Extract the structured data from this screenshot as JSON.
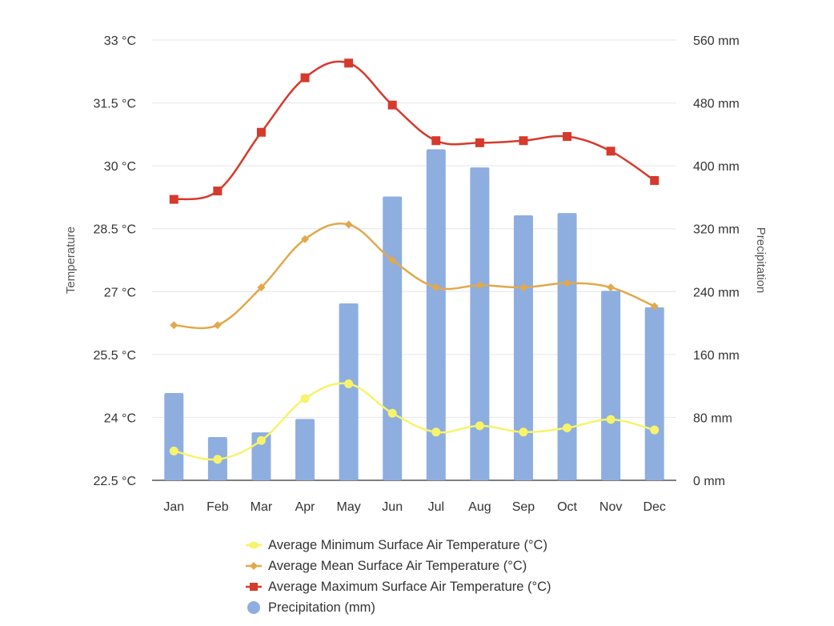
{
  "chart_data": {
    "type": "bar+line",
    "title": "",
    "categories": [
      "Jan",
      "Feb",
      "Mar",
      "Apr",
      "May",
      "Jun",
      "Jul",
      "Aug",
      "Sep",
      "Oct",
      "Nov",
      "Dec"
    ],
    "y_left": {
      "label": "Temperature",
      "range": [
        22.5,
        33
      ],
      "ticks": [
        22.5,
        24,
        25.5,
        27,
        28.5,
        30,
        31.5,
        33
      ],
      "tick_labels": [
        "22.5 °C",
        "24 °C",
        "25.5 °C",
        "27 °C",
        "28.5 °C",
        "30 °C",
        "31.5 °C",
        "33 °C"
      ]
    },
    "y_right": {
      "label": "Precipitation",
      "range": [
        0,
        560
      ],
      "ticks": [
        0,
        80,
        160,
        240,
        320,
        400,
        480,
        560
      ],
      "tick_labels": [
        "0 mm",
        "80 mm",
        "160 mm",
        "240 mm",
        "320 mm",
        "400 mm",
        "480 mm",
        "560 mm"
      ]
    },
    "grid": true,
    "legend_position": "bottom",
    "series": [
      {
        "name": "Average Minimum Surface Air Temperature (°C)",
        "type": "line",
        "axis": "left",
        "marker": "circle",
        "color": "#f7f36b",
        "values": [
          23.2,
          23.0,
          23.45,
          24.45,
          24.8,
          24.1,
          23.65,
          23.8,
          23.65,
          23.75,
          23.95,
          23.7
        ]
      },
      {
        "name": "Average Mean Surface Air Temperature (°C)",
        "type": "line",
        "axis": "left",
        "marker": "diamond",
        "color": "#e2a84b",
        "values": [
          26.2,
          26.2,
          27.1,
          28.25,
          28.6,
          27.75,
          27.1,
          27.15,
          27.1,
          27.2,
          27.1,
          26.65
        ]
      },
      {
        "name": "Average Maximum Surface Air Temperature (°C)",
        "type": "line",
        "axis": "left",
        "marker": "square",
        "color": "#d63a2c",
        "values": [
          29.2,
          29.4,
          30.8,
          32.1,
          32.45,
          31.45,
          30.6,
          30.55,
          30.6,
          30.7,
          30.35,
          29.65
        ]
      },
      {
        "name": "Precipitation (mm)",
        "type": "bar",
        "axis": "right",
        "marker": "circle",
        "color": "#8eaee0",
        "values": [
          111,
          55,
          61,
          78,
          225,
          361,
          421,
          398,
          337,
          340,
          241,
          220
        ]
      }
    ],
    "legend_order": [
      0,
      1,
      2,
      3
    ]
  }
}
